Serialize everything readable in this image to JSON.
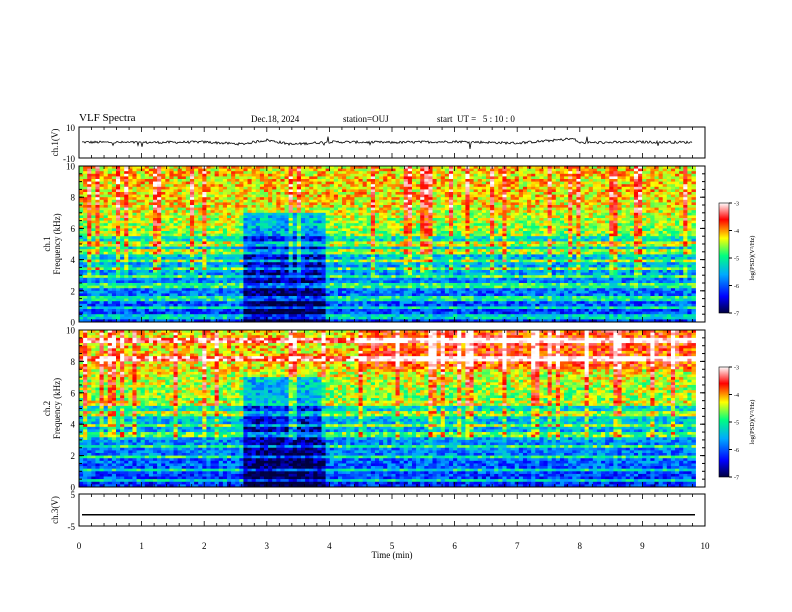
{
  "header": {
    "title": "VLF Spectra",
    "date": "Dec.18, 2024",
    "station": "station=OUJ",
    "start_ut": "start  UT =   5 : 10 : 0"
  },
  "chart_data": [
    {
      "type": "line",
      "panel": "ch1-waveform",
      "ylabel": "ch.1(V)",
      "ylim": [
        -10,
        10
      ],
      "y_ticks": [
        "10",
        "-10"
      ],
      "x": [
        0,
        1,
        2,
        2.6,
        3.0,
        3.4,
        4,
        5,
        6,
        7,
        7.9,
        8,
        9,
        9.8
      ],
      "values": [
        0.2,
        0.0,
        0.3,
        -1.0,
        1.6,
        -1.2,
        0.4,
        0.0,
        0.6,
        -0.4,
        2.4,
        -0.2,
        0.3,
        0.1
      ],
      "color": "#000000"
    },
    {
      "type": "heatmap",
      "panel": "ch1-spectrogram",
      "ylabel": "ch.1 Frequency (kHz)",
      "ylim": [
        0,
        10
      ],
      "y_ticks": [
        "0",
        "2",
        "4",
        "6",
        "8",
        "10"
      ],
      "xlim": [
        0,
        9.85
      ],
      "color_scale": {
        "label": "log(PSD)(V²/Hz)",
        "range": [
          -7,
          -3
        ],
        "ticks": [
          "-3",
          "-4",
          "-5",
          "-6",
          "-7"
        ],
        "colors": [
          "#000040",
          "#0000ff",
          "#00aaff",
          "#00ff80",
          "#ffff00",
          "#ff0000",
          "#ffffff"
        ]
      }
    },
    {
      "type": "heatmap",
      "panel": "ch2-spectrogram",
      "ylabel": "ch.2 Frequency (kHz)",
      "ylim": [
        0,
        10
      ],
      "y_ticks": [
        "0",
        "2",
        "4",
        "6",
        "8",
        "10"
      ],
      "xlim": [
        0,
        9.85
      ],
      "color_scale": {
        "label": "log(PSD)(V²/Hz)",
        "range": [
          -7,
          -3
        ],
        "ticks": [
          "-3",
          "-4",
          "-5",
          "-6",
          "-7"
        ],
        "colors": [
          "#000040",
          "#0000ff",
          "#00aaff",
          "#00ff80",
          "#ffff00",
          "#ff0000",
          "#ffffff"
        ]
      }
    },
    {
      "type": "line",
      "panel": "ch3-waveform",
      "ylabel": "ch.3(V)",
      "ylim": [
        -5,
        5
      ],
      "y_ticks": [
        "5",
        "-5"
      ],
      "x": [
        0,
        9.85
      ],
      "values": [
        -1.5,
        -1.5
      ],
      "color": "#000000"
    }
  ],
  "x_axis": {
    "label": "Time (min)",
    "ticks": [
      "0",
      "1",
      "2",
      "3",
      "4",
      "5",
      "6",
      "7",
      "8",
      "9",
      "10"
    ],
    "xlim": [
      0,
      10
    ]
  }
}
